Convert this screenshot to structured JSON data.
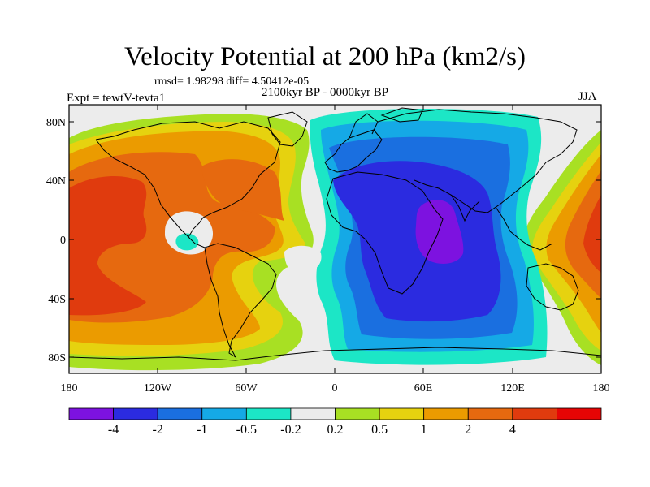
{
  "title": "Velocity Potential at 200 hPa (km2/s)",
  "stats_line": "rmsd= 1.98298 diff= 4.50412e-05",
  "subtitle": "2100kyr BP - 0000kyr BP",
  "left_label": "Expt = tewtV-tevta1",
  "right_label": "JJA",
  "y_ticks": [
    "80N",
    "40N",
    "0",
    "40S",
    "80S"
  ],
  "x_ticks": [
    "180",
    "120W",
    "60W",
    "0",
    "60E",
    "120E",
    "180"
  ],
  "colorbar": {
    "colors": [
      "#7d12e0",
      "#2b2be0",
      "#1a6fe0",
      "#15a9e6",
      "#1ce6c6",
      "#ececec",
      "#a8e023",
      "#e6d20f",
      "#eb9b00",
      "#e6690f",
      "#e03b0e",
      "#e60505"
    ],
    "labels": [
      "-4",
      "-2",
      "-1",
      "-0.5",
      "-0.2",
      "0.2",
      "0.5",
      "1",
      "2",
      "4"
    ]
  }
}
